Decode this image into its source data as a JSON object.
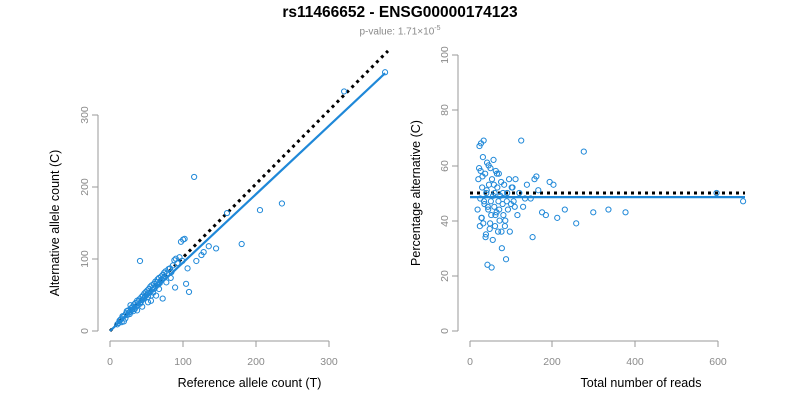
{
  "header": {
    "title": "rs11466652 - ENSG00000174123",
    "subtitle_prefix": "p-value: 1.71×10",
    "subtitle_exponent": "-5"
  },
  "chart_data": [
    {
      "type": "scatter",
      "xlabel": "Reference allele count (T)",
      "ylabel": "Alternative allele count (C)",
      "xlim": [
        0,
        380
      ],
      "ylim": [
        0,
        350
      ],
      "xticks": [
        "0",
        "100",
        "200",
        "300"
      ],
      "yticks": [
        "0",
        "100",
        "200",
        "300"
      ],
      "grid": false,
      "point_color": "#1f88d8",
      "line_color": "#1f88d8",
      "reference_line": {
        "style": "dotted",
        "color": "#000000",
        "slope": 1.0,
        "intercept": 0
      },
      "fit_line": {
        "slope": 0.93,
        "intercept": 0
      },
      "x": [
        10,
        12,
        13,
        15,
        16,
        18,
        20,
        21,
        22,
        24,
        25,
        26,
        28,
        29,
        30,
        31,
        32,
        33,
        34,
        35,
        36,
        37,
        38,
        39,
        40,
        41,
        42,
        43,
        44,
        45,
        46,
        47,
        48,
        49,
        50,
        51,
        52,
        53,
        54,
        55,
        56,
        57,
        58,
        59,
        60,
        61,
        62,
        63,
        64,
        65,
        66,
        67,
        68,
        69,
        70,
        71,
        72,
        73,
        74,
        75,
        76,
        78,
        80,
        82,
        84,
        86,
        88,
        90,
        92,
        95,
        97,
        99,
        100,
        102,
        104,
        106,
        108,
        115,
        118,
        125,
        128,
        135,
        145,
        160,
        180,
        205,
        235,
        320,
        376,
        14,
        17,
        19,
        23,
        27,
        28,
        33,
        37,
        41,
        44,
        47,
        52,
        56,
        59,
        63,
        67,
        72,
        77,
        83,
        89
      ],
      "y": [
        9,
        11,
        14,
        16,
        12,
        19,
        21,
        17,
        24,
        22,
        28,
        25,
        26,
        31,
        29,
        33,
        27,
        36,
        30,
        38,
        34,
        41,
        35,
        40,
        43,
        95,
        39,
        46,
        42,
        48,
        44,
        51,
        47,
        53,
        49,
        55,
        46,
        57,
        52,
        60,
        48,
        62,
        56,
        59,
        64,
        58,
        67,
        61,
        66,
        70,
        63,
        72,
        65,
        68,
        74,
        70,
        76,
        72,
        79,
        74,
        81,
        78,
        84,
        85,
        80,
        89,
        96,
        98,
        92,
        100,
        121,
        95,
        124,
        125,
        64,
        85,
        53,
        209,
        95,
        103,
        107,
        115,
        112,
        160,
        118,
        164,
        173,
        325,
        351,
        15,
        20,
        13,
        27,
        23,
        35,
        30,
        28,
        37,
        33,
        45,
        39,
        41,
        52,
        48,
        57,
        44,
        66,
        72,
        59
      ]
    },
    {
      "type": "scatter",
      "xlabel": "Total number of reads",
      "ylabel": "Percentage alternative (C)",
      "xlim": [
        0,
        725
      ],
      "ylim": [
        0,
        100
      ],
      "xticks": [
        "0",
        "200",
        "400",
        "600"
      ],
      "yticks": [
        "0",
        "20",
        "40",
        "60",
        "80",
        "100"
      ],
      "grid": false,
      "point_color": "#1f88d8",
      "line_color": "#1f88d8",
      "reference_line": {
        "style": "dotted",
        "color": "#000000",
        "value": 50
      },
      "fit_line": {
        "value": 48.5
      },
      "x": [
        20,
        22,
        25,
        27,
        28,
        30,
        32,
        34,
        35,
        36,
        38,
        40,
        42,
        43,
        45,
        46,
        48,
        50,
        52,
        54,
        55,
        56,
        58,
        60,
        62,
        64,
        65,
        66,
        68,
        70,
        72,
        74,
        75,
        76,
        78,
        80,
        82,
        84,
        86,
        88,
        90,
        92,
        95,
        98,
        100,
        105,
        110,
        115,
        120,
        125,
        130,
        135,
        140,
        150,
        160,
        170,
        180,
        190,
        200,
        210,
        220,
        230,
        250,
        280,
        300,
        325,
        365,
        410,
        650,
        720,
        24,
        26,
        29,
        31,
        33,
        37,
        41,
        44,
        47,
        49,
        53,
        57,
        61,
        63,
        67,
        71,
        77,
        83,
        87,
        93,
        97,
        103,
        108,
        112,
        118,
        145,
        165,
        175
      ],
      "y": [
        44,
        55,
        67,
        48,
        58,
        41,
        52,
        63,
        39,
        69,
        46,
        57,
        35,
        50,
        61,
        24,
        44,
        53,
        37,
        59,
        47,
        42,
        55,
        33,
        62,
        45,
        50,
        38,
        58,
        43,
        52,
        36,
        47,
        57,
        40,
        49,
        54,
        30,
        46,
        42,
        53,
        38,
        26,
        50,
        44,
        36,
        52,
        47,
        55,
        42,
        50,
        69,
        45,
        53,
        48,
        55,
        51,
        43,
        42,
        54,
        53,
        41,
        44,
        39,
        65,
        43,
        44,
        43,
        50,
        47,
        59,
        38,
        68,
        41,
        56,
        47,
        34,
        51,
        45,
        60,
        39,
        23,
        49,
        53,
        42,
        57,
        44,
        36,
        50,
        40,
        47,
        55,
        46,
        52,
        45,
        48,
        34,
        56
      ]
    }
  ]
}
